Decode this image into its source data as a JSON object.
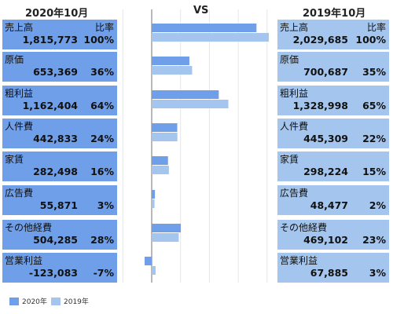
{
  "headers": {
    "left": "2020年10月",
    "center": "VS",
    "right": "2019年10月"
  },
  "ratio_label": "比率",
  "colors": {
    "series_2020": "#6f9fe9",
    "series_2019": "#a4c6ee"
  },
  "legend": [
    {
      "label": "2020年"
    },
    {
      "label": "2019年"
    }
  ],
  "items": [
    {
      "name": "売上高",
      "v2020": "1,815,773",
      "p2020": "100%",
      "v2019": "2,029,685",
      "p2019": "100%"
    },
    {
      "name": "原価",
      "v2020": "653,369",
      "p2020": "36%",
      "v2019": "700,687",
      "p2019": "35%"
    },
    {
      "name": "粗利益",
      "v2020": "1,162,404",
      "p2020": "64%",
      "v2019": "1,328,998",
      "p2019": "65%"
    },
    {
      "name": "人件費",
      "v2020": "442,833",
      "p2020": "24%",
      "v2019": "445,309",
      "p2019": "22%"
    },
    {
      "name": "家賃",
      "v2020": "282,498",
      "p2020": "16%",
      "v2019": "298,224",
      "p2019": "15%"
    },
    {
      "name": "広告費",
      "v2020": "55,871",
      "p2020": "3%",
      "v2019": "48,477",
      "p2019": "2%"
    },
    {
      "name": "その他経費",
      "v2020": "504,285",
      "p2020": "28%",
      "v2019": "469,102",
      "p2019": "23%"
    },
    {
      "name": "営業利益",
      "v2020": "-123,083",
      "p2020": "-7%",
      "v2019": "67,885",
      "p2019": "3%"
    }
  ],
  "chart_data": {
    "type": "bar",
    "orientation": "horizontal",
    "categories": [
      "売上高",
      "原価",
      "粗利益",
      "人件費",
      "家賃",
      "広告費",
      "その他経費",
      "営業利益"
    ],
    "series": [
      {
        "name": "2020年",
        "values": [
          1815773,
          653369,
          1162404,
          442833,
          282498,
          55871,
          504285,
          -123083
        ]
      },
      {
        "name": "2019年",
        "values": [
          2029685,
          700687,
          1328998,
          445309,
          298224,
          48477,
          469102,
          67885
        ]
      }
    ],
    "xlim": [
      -500000,
      2100000
    ],
    "grid": true,
    "legend": "bottom-left"
  }
}
